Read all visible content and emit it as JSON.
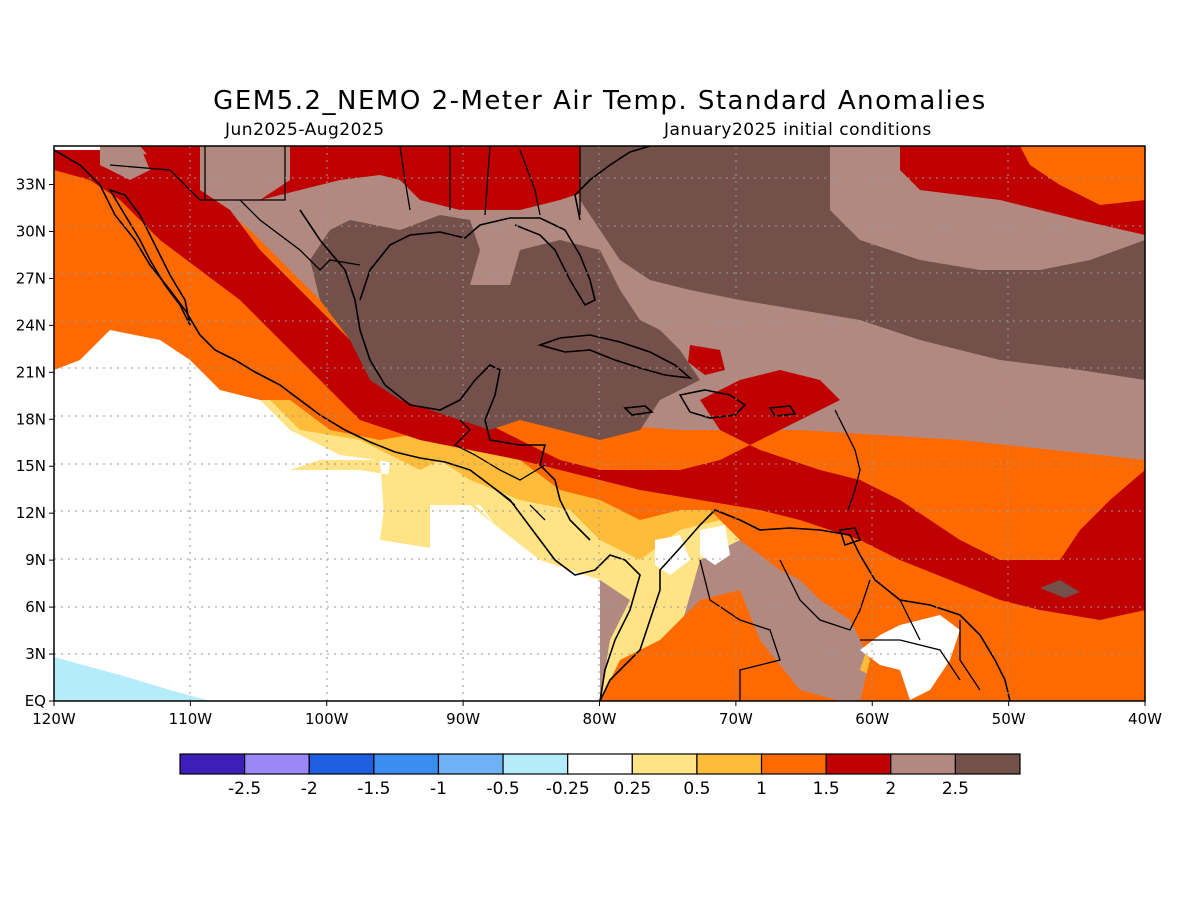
{
  "title": "GEM5.2_NEMO 2-Meter Air Temp. Standard Anomalies",
  "subtitle_left": "Jun2025-Aug2025",
  "subtitle_right": "January2025 initial conditions",
  "map": {
    "type": "filled-contour",
    "lon_labels": [
      "120W",
      "110W",
      "100W",
      "90W",
      "80W",
      "70W",
      "60W",
      "50W",
      "40W"
    ],
    "lat_labels": [
      "EQ",
      "3N",
      "6N",
      "9N",
      "12N",
      "15N",
      "18N",
      "21N",
      "24N",
      "27N",
      "30N",
      "33N"
    ],
    "grid": true
  },
  "colorbar": {
    "colors": [
      "#3d1fb8",
      "#9b87f5",
      "#1d5fe0",
      "#3b8ef0",
      "#6eb2f5",
      "#b4ecfa",
      "#ffffff",
      "#ffe385",
      "#ffbb3a",
      "#ff6a00",
      "#c00000",
      "#b28980",
      "#73504a"
    ],
    "tick_labels": [
      "-2.5",
      "-2",
      "-1.5",
      "-1",
      "-0.5",
      "-0.25",
      "0.25",
      "0.5",
      "1",
      "1.5",
      "2",
      "2.5"
    ]
  }
}
